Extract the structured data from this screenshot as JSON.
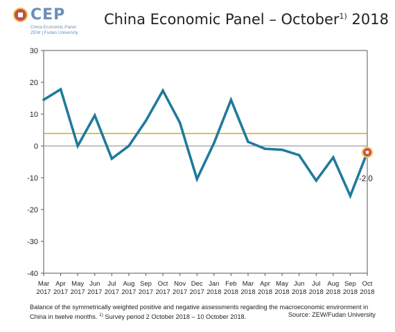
{
  "header": {
    "logo_name": "CEP",
    "logo_sub_1": "China Economic Panel",
    "logo_sub_2": "ZEW | Fudan University",
    "title_main": "China Economic Panel – October",
    "title_sup": "1)",
    "title_year": " 2018"
  },
  "colors": {
    "series": "#1f7a9c",
    "reference": "#e0a21b",
    "zero": "#9b9b9b",
    "axis": "#555555",
    "marker_fill": "#c0504d",
    "marker_ring": "#f2c14e"
  },
  "chart_data": {
    "type": "line",
    "categories": [
      [
        "Mar",
        "2017"
      ],
      [
        "Apr",
        "2017"
      ],
      [
        "May",
        "2017"
      ],
      [
        "Jun",
        "2017"
      ],
      [
        "Jul",
        "2017"
      ],
      [
        "Aug",
        "2017"
      ],
      [
        "Sep",
        "2017"
      ],
      [
        "Oct",
        "2017"
      ],
      [
        "Nov",
        "2017"
      ],
      [
        "Dec",
        "2017"
      ],
      [
        "Jan",
        "2018"
      ],
      [
        "Feb",
        "2018"
      ],
      [
        "Mar",
        "2018"
      ],
      [
        "Apr",
        "2018"
      ],
      [
        "May",
        "2018"
      ],
      [
        "Jun",
        "2018"
      ],
      [
        "Jul",
        "2018"
      ],
      [
        "Aug",
        "2018"
      ],
      [
        "Sep",
        "2018"
      ],
      [
        "Oct",
        "2018"
      ]
    ],
    "values": [
      14.5,
      17.8,
      0.0,
      9.6,
      -4.0,
      0.0,
      7.9,
      17.4,
      7.3,
      -10.4,
      0.9,
      14.5,
      1.3,
      -0.9,
      -1.2,
      -2.9,
      -10.9,
      -3.6,
      -15.7,
      -2.0
    ],
    "reference_line": 3.9,
    "yticks": [
      30,
      20,
      10,
      0,
      -10,
      -20,
      -30,
      -40
    ],
    "ylim": [
      -40,
      30
    ],
    "grid": false,
    "highlight_label": "-2.0"
  },
  "footer": {
    "note_text": "Balance of the symmetrically weighted positive and negative assessments regarding the macroeconomic environment in China in twelve months. ",
    "note_sup": "1)",
    "note_survey": " Survey period 2 October 2018 – 10 October 2018.",
    "source": "Source: ZEW/Fudan University"
  }
}
